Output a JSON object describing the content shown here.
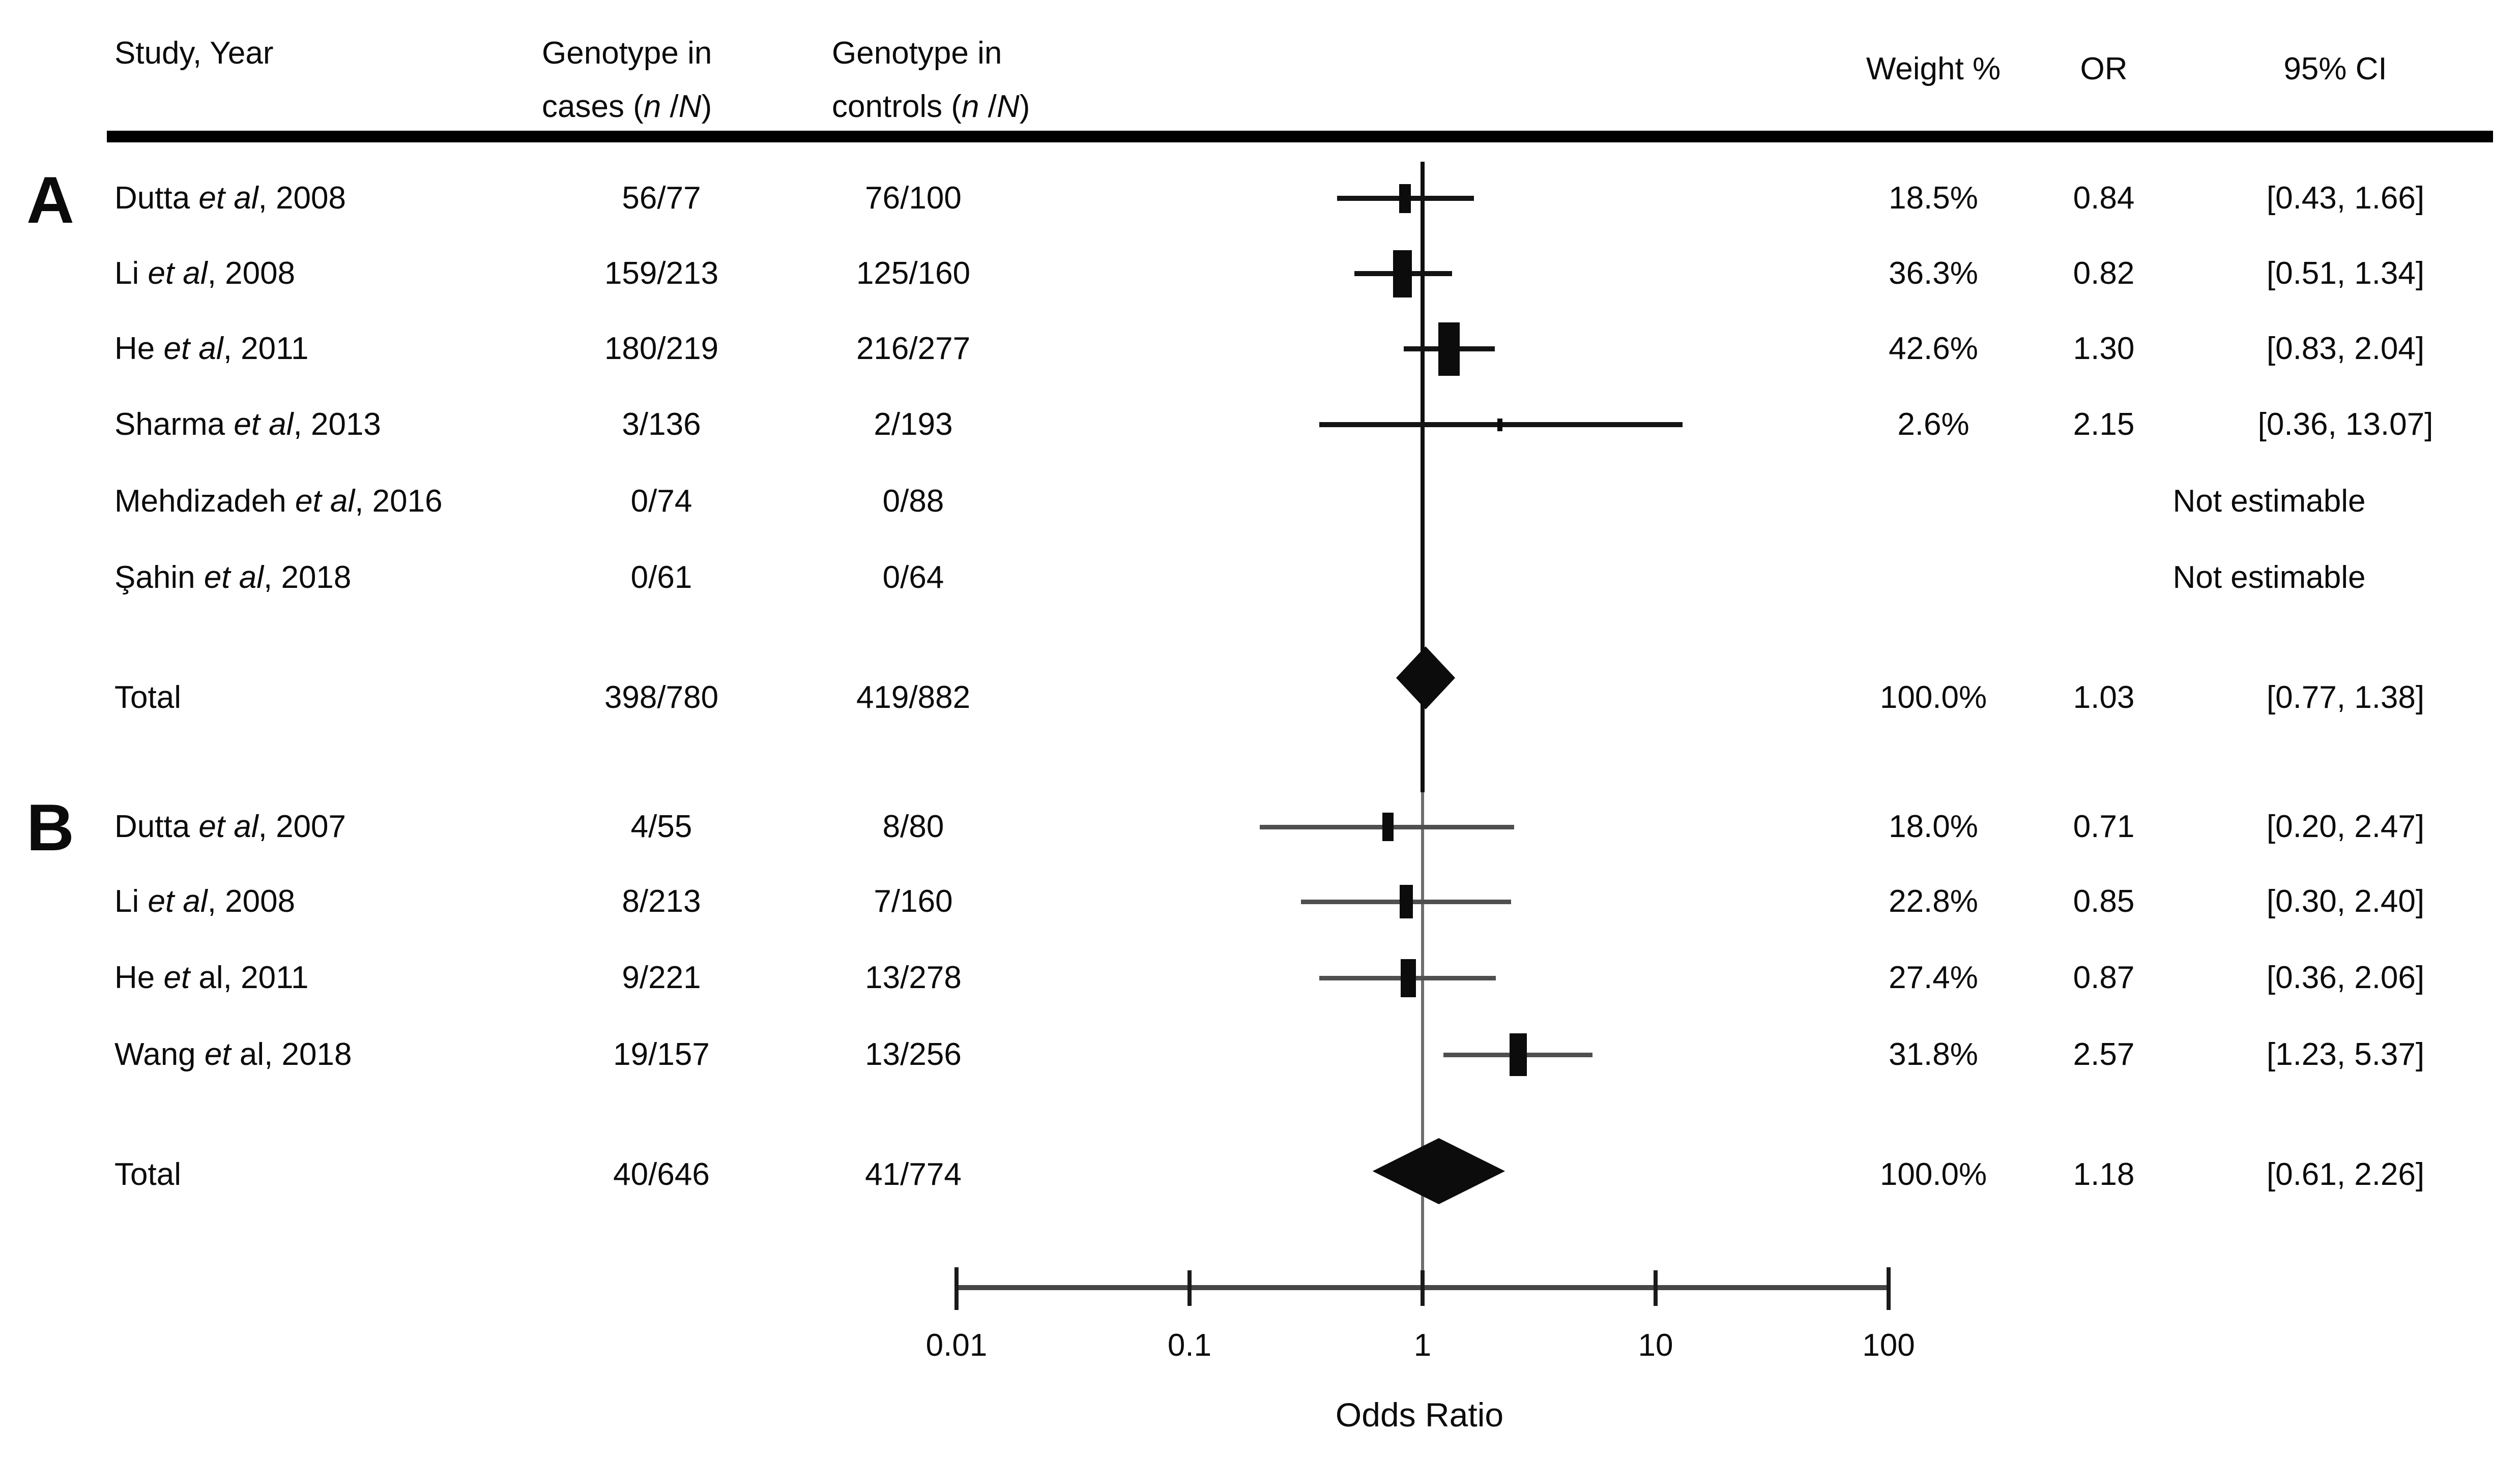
{
  "header": {
    "study": "Study, Year",
    "cases_line1": "Genotype in",
    "cases_line2": [
      {
        "t": "cases ("
      },
      {
        "t": "n",
        "i": true
      },
      {
        "t": " /"
      },
      {
        "t": "N",
        "i": true
      },
      {
        "t": ")"
      }
    ],
    "controls_line1": "Genotype in",
    "controls_line2": [
      {
        "t": "controls ("
      },
      {
        "t": "n",
        "i": true
      },
      {
        "t": " /"
      },
      {
        "t": "N",
        "i": true
      },
      {
        "t": ")"
      }
    ],
    "weight": "Weight %",
    "or": "OR",
    "ci": "95% CI"
  },
  "panels": [
    {
      "label": "A",
      "rows": [
        {
          "name": [
            {
              "t": "Dutta "
            },
            {
              "t": "et al",
              "i": true
            },
            {
              "t": ", 2008"
            }
          ],
          "cases": "56/77",
          "controls": "76/100",
          "weight": "18.5%",
          "or": "0.84",
          "ci": "[0.43, 1.66]",
          "est": {
            "or": 0.84,
            "lo": 0.43,
            "hi": 1.66,
            "w": 18.5
          }
        },
        {
          "name": [
            {
              "t": "Li "
            },
            {
              "t": "et al",
              "i": true
            },
            {
              "t": ", 2008"
            }
          ],
          "cases": "159/213",
          "controls": "125/160",
          "weight": "36.3%",
          "or": "0.82",
          "ci": "[0.51, 1.34]",
          "est": {
            "or": 0.82,
            "lo": 0.51,
            "hi": 1.34,
            "w": 36.3
          }
        },
        {
          "name": [
            {
              "t": "He "
            },
            {
              "t": "et al",
              "i": true
            },
            {
              "t": ", 2011"
            }
          ],
          "cases": "180/219",
          "controls": "216/277",
          "weight": "42.6%",
          "or": "1.30",
          "ci": "[0.83, 2.04]",
          "est": {
            "or": 1.3,
            "lo": 0.83,
            "hi": 2.04,
            "w": 42.6
          }
        },
        {
          "name": [
            {
              "t": "Sharma "
            },
            {
              "t": "et al",
              "i": true
            },
            {
              "t": ", 2013"
            }
          ],
          "cases": "3/136",
          "controls": "2/193",
          "weight": "2.6%",
          "or": "2.15",
          "ci": "[0.36,  13.07]",
          "est": {
            "or": 2.15,
            "lo": 0.36,
            "hi": 13.07,
            "w": 2.6
          }
        },
        {
          "name": [
            {
              "t": "Mehdizadeh "
            },
            {
              "t": "et al",
              "i": true
            },
            {
              "t": ", 2016"
            }
          ],
          "cases": "0/74",
          "controls": "0/88",
          "note": "Not estimable"
        },
        {
          "name": [
            {
              "t": "Şahin "
            },
            {
              "t": "et al",
              "i": true
            },
            {
              "t": ", 2018"
            }
          ],
          "cases": "0/61",
          "controls": "0/64",
          "note": "Not estimable"
        }
      ],
      "total": {
        "label": "Total",
        "cases": "398/780",
        "controls": "419/882",
        "weight": "100.0%",
        "or": "1.03",
        "ci": "[0.77, 1.38]",
        "est": {
          "or": 1.03,
          "lo": 0.77,
          "hi": 1.38
        }
      }
    },
    {
      "label": "B",
      "rows": [
        {
          "name": [
            {
              "t": "Dutta "
            },
            {
              "t": "et al",
              "i": true
            },
            {
              "t": ", 2007"
            }
          ],
          "cases": "4/55",
          "controls": "8/80",
          "weight": "18.0%",
          "or": "0.71",
          "ci": "[0.20, 2.47]",
          "est": {
            "or": 0.71,
            "lo": 0.2,
            "hi": 2.47,
            "w": 18.0
          }
        },
        {
          "name": [
            {
              "t": "Li "
            },
            {
              "t": "et al",
              "i": true
            },
            {
              "t": ", 2008"
            }
          ],
          "cases": "8/213",
          "controls": "7/160",
          "weight": "22.8%",
          "or": "0.85",
          "ci": "[0.30, 2.40]",
          "est": {
            "or": 0.85,
            "lo": 0.3,
            "hi": 2.4,
            "w": 22.8
          }
        },
        {
          "name": [
            {
              "t": "He "
            },
            {
              "t": "et",
              "i": true
            },
            {
              "t": " al, 2011"
            }
          ],
          "cases": "9/221",
          "controls": "13/278",
          "weight": "27.4%",
          "or": "0.87",
          "ci": "[0.36, 2.06]",
          "est": {
            "or": 0.87,
            "lo": 0.36,
            "hi": 2.06,
            "w": 27.4
          }
        },
        {
          "name": [
            {
              "t": "Wang "
            },
            {
              "t": "et",
              "i": true
            },
            {
              "t": " al, 2018"
            }
          ],
          "cases": "19/157",
          "controls": "13/256",
          "weight": "31.8%",
          "or": "2.57",
          "ci": "[1.23, 5.37]",
          "est": {
            "or": 2.57,
            "lo": 1.23,
            "hi": 5.37,
            "w": 31.8
          }
        }
      ],
      "total": {
        "label": "Total",
        "cases": "40/646",
        "controls": "41/774",
        "weight": "100.0%",
        "or": "1.18",
        "ci": "[0.61, 2.26]",
        "est": {
          "or": 1.18,
          "lo": 0.61,
          "hi": 2.26
        }
      }
    }
  ],
  "axis": {
    "tick_labels": [
      "0.01",
      "0.1",
      "1",
      "10",
      "100"
    ],
    "tick_values": [
      0.01,
      0.1,
      1,
      10,
      100
    ],
    "xlabel": "Odds Ratio",
    "scale": "log10"
  },
  "chart_data": {
    "type": "forest",
    "title": "",
    "xlabel": "Odds Ratio",
    "x_scale": "log10",
    "x_ticks": [
      0.01,
      0.1,
      1,
      10,
      100
    ],
    "xlim": [
      0.01,
      100
    ],
    "reference_line": 1,
    "columns": [
      "Study, Year",
      "Genotype in cases (n/N)",
      "Genotype in controls (n/N)",
      "Weight %",
      "OR",
      "95% CI"
    ],
    "panels": [
      {
        "panel": "A",
        "studies": [
          {
            "study": "Dutta et al, 2008",
            "cases": "56/77",
            "controls": "76/100",
            "weight_pct": 18.5,
            "or": 0.84,
            "ci_low": 0.43,
            "ci_high": 1.66
          },
          {
            "study": "Li et al, 2008",
            "cases": "159/213",
            "controls": "125/160",
            "weight_pct": 36.3,
            "or": 0.82,
            "ci_low": 0.51,
            "ci_high": 1.34
          },
          {
            "study": "He et al, 2011",
            "cases": "180/219",
            "controls": "216/277",
            "weight_pct": 42.6,
            "or": 1.3,
            "ci_low": 0.83,
            "ci_high": 2.04
          },
          {
            "study": "Sharma et al, 2013",
            "cases": "3/136",
            "controls": "2/193",
            "weight_pct": 2.6,
            "or": 2.15,
            "ci_low": 0.36,
            "ci_high": 13.07
          },
          {
            "study": "Mehdizadeh et al, 2016",
            "cases": "0/74",
            "controls": "0/88",
            "weight_pct": null,
            "or": null,
            "ci_low": null,
            "ci_high": null,
            "note": "Not estimable"
          },
          {
            "study": "Şahin et al, 2018",
            "cases": "0/61",
            "controls": "0/64",
            "weight_pct": null,
            "or": null,
            "ci_low": null,
            "ci_high": null,
            "note": "Not estimable"
          }
        ],
        "total": {
          "study": "Total",
          "cases": "398/780",
          "controls": "419/882",
          "weight_pct": 100.0,
          "or": 1.03,
          "ci_low": 0.77,
          "ci_high": 1.38
        }
      },
      {
        "panel": "B",
        "studies": [
          {
            "study": "Dutta et al, 2007",
            "cases": "4/55",
            "controls": "8/80",
            "weight_pct": 18.0,
            "or": 0.71,
            "ci_low": 0.2,
            "ci_high": 2.47
          },
          {
            "study": "Li et al, 2008",
            "cases": "8/213",
            "controls": "7/160",
            "weight_pct": 22.8,
            "or": 0.85,
            "ci_low": 0.3,
            "ci_high": 2.4
          },
          {
            "study": "He et al, 2011",
            "cases": "9/221",
            "controls": "13/278",
            "weight_pct": 27.4,
            "or": 0.87,
            "ci_low": 0.36,
            "ci_high": 2.06
          },
          {
            "study": "Wang et al, 2018",
            "cases": "19/157",
            "controls": "13/256",
            "weight_pct": 31.8,
            "or": 2.57,
            "ci_low": 1.23,
            "ci_high": 5.37
          }
        ],
        "total": {
          "study": "Total",
          "cases": "40/646",
          "controls": "41/774",
          "weight_pct": 100.0,
          "or": 1.18,
          "ci_low": 0.61,
          "ci_high": 2.26
        }
      }
    ]
  }
}
